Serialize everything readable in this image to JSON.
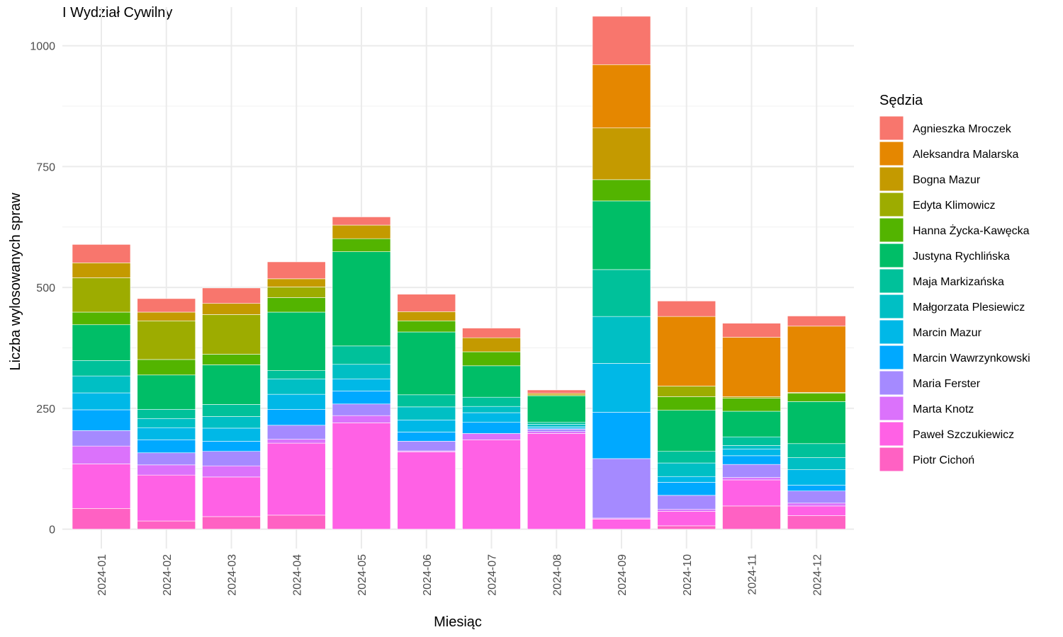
{
  "chart_data": {
    "type": "bar",
    "stacked": true,
    "title": "I Wydział Cywilny",
    "xlabel": "Miesiąc",
    "ylabel": "Liczba wylosowanych spraw",
    "legend_title": "Sędzia",
    "legend_position": "right",
    "grid": true,
    "ylim": [
      -40,
      1080
    ],
    "yticks": [
      0,
      250,
      500,
      750,
      1000
    ],
    "categories": [
      "2024-01",
      "2024-02",
      "2024-03",
      "2024-04",
      "2024-05",
      "2024-06",
      "2024-07",
      "2024-08",
      "2024-09",
      "2024-10",
      "2024-11",
      "2024-12"
    ],
    "series": [
      {
        "name": "Piotr Cichoń",
        "color": "#FF61C3",
        "values": [
          43,
          17,
          26,
          29,
          0,
          0,
          0,
          0,
          0,
          7,
          48,
          28
        ]
      },
      {
        "name": "Paweł Szczukiewicz",
        "color": "#FF61E5",
        "values": [
          92,
          95,
          82,
          149,
          220,
          160,
          185,
          198,
          21,
          30,
          54,
          20
        ]
      },
      {
        "name": "Marta Knotz",
        "color": "#DB72FB",
        "values": [
          37,
          21,
          23,
          8,
          15,
          2,
          13,
          4,
          2,
          4,
          5,
          6
        ]
      },
      {
        "name": "Maria Ferster",
        "color": "#A58AFF",
        "values": [
          32,
          25,
          30,
          29,
          24,
          20,
          0,
          5,
          123,
          29,
          27,
          25
        ]
      },
      {
        "name": "Marcin Wawrzynkowski",
        "color": "#00A9FF",
        "values": [
          43,
          27,
          21,
          33,
          27,
          19,
          23,
          2,
          96,
          27,
          18,
          12
        ]
      },
      {
        "name": "Marcin Mazur",
        "color": "#00B8E7",
        "values": [
          35,
          25,
          27,
          31,
          25,
          25,
          20,
          3,
          101,
          12,
          14,
          32
        ]
      },
      {
        "name": "Małgorzata Plesiewicz",
        "color": "#00BFC4",
        "values": [
          35,
          19,
          24,
          32,
          30,
          27,
          13,
          5,
          97,
          28,
          7,
          25
        ]
      },
      {
        "name": "Maja Markizańska",
        "color": "#00C19A",
        "values": [
          32,
          19,
          25,
          17,
          38,
          25,
          19,
          4,
          97,
          24,
          18,
          29
        ]
      },
      {
        "name": "Justyna Rychlińska",
        "color": "#00BE67",
        "values": [
          74,
          71,
          82,
          121,
          195,
          130,
          65,
          55,
          142,
          85,
          53,
          87
        ]
      },
      {
        "name": "Hanna Życka-Kawęcka",
        "color": "#53B400",
        "values": [
          26,
          32,
          22,
          30,
          27,
          23,
          29,
          0,
          44,
          28,
          27,
          17
        ]
      },
      {
        "name": "Edyta Klimowicz",
        "color": "#9DAC00",
        "values": [
          71,
          80,
          82,
          22,
          0,
          0,
          0,
          2,
          0,
          22,
          3,
          2
        ]
      },
      {
        "name": "Bogna Mazur",
        "color": "#C49A00",
        "values": [
          31,
          18,
          23,
          17,
          28,
          19,
          29,
          3,
          107,
          0,
          0,
          0
        ]
      },
      {
        "name": "Aleksandra Malarska",
        "color": "#E58700",
        "values": [
          0,
          0,
          0,
          0,
          0,
          0,
          0,
          0,
          131,
          144,
          123,
          137
        ]
      },
      {
        "name": "Agnieszka Mroczek",
        "color": "#F8766D",
        "values": [
          38,
          28,
          32,
          35,
          17,
          36,
          20,
          7,
          100,
          32,
          29,
          21
        ]
      }
    ]
  }
}
